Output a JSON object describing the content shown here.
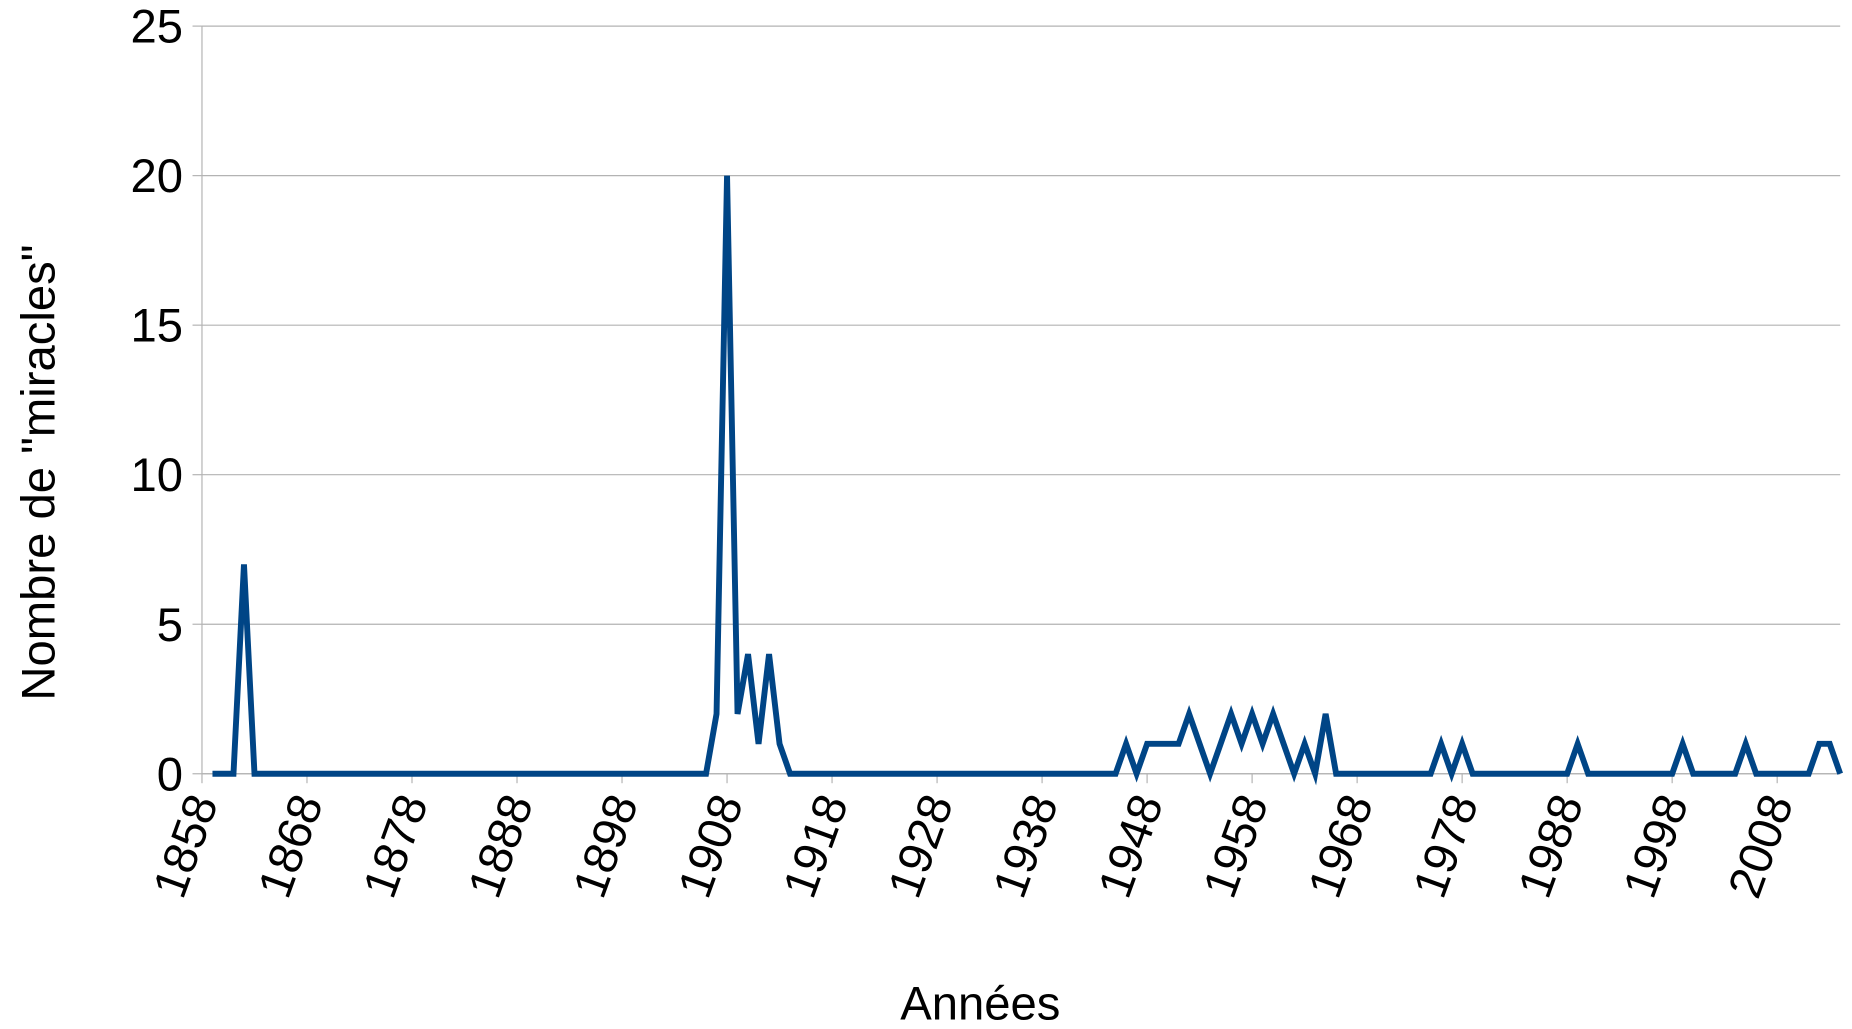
{
  "chart_data": {
    "type": "line",
    "xlabel": "Années",
    "ylabel": "Nombre de \"miracles\"",
    "color": "#004586",
    "grid": true,
    "xlim": [
      1858,
      2014
    ],
    "xticks": [
      1858,
      1868,
      1878,
      1888,
      1898,
      1908,
      1918,
      1928,
      1938,
      1948,
      1958,
      1968,
      1978,
      1988,
      1998,
      2008
    ],
    "ylim": [
      0,
      25
    ],
    "yticks": [
      0,
      5,
      10,
      15,
      20,
      25
    ],
    "x": [
      1859,
      1860,
      1861,
      1862,
      1863,
      1864,
      1865,
      1866,
      1867,
      1868,
      1869,
      1870,
      1871,
      1872,
      1873,
      1874,
      1875,
      1876,
      1877,
      1878,
      1879,
      1880,
      1881,
      1882,
      1883,
      1884,
      1885,
      1886,
      1887,
      1888,
      1889,
      1890,
      1891,
      1892,
      1893,
      1894,
      1895,
      1896,
      1897,
      1898,
      1899,
      1900,
      1901,
      1902,
      1903,
      1904,
      1905,
      1906,
      1907,
      1908,
      1909,
      1910,
      1911,
      1912,
      1913,
      1914,
      1915,
      1916,
      1917,
      1918,
      1919,
      1920,
      1921,
      1922,
      1923,
      1924,
      1925,
      1926,
      1927,
      1928,
      1929,
      1930,
      1931,
      1932,
      1933,
      1934,
      1935,
      1936,
      1937,
      1938,
      1939,
      1940,
      1941,
      1942,
      1943,
      1944,
      1945,
      1946,
      1947,
      1948,
      1949,
      1950,
      1951,
      1952,
      1953,
      1954,
      1955,
      1956,
      1957,
      1958,
      1959,
      1960,
      1961,
      1962,
      1963,
      1964,
      1965,
      1966,
      1967,
      1968,
      1969,
      1970,
      1971,
      1972,
      1973,
      1974,
      1975,
      1976,
      1977,
      1978,
      1979,
      1980,
      1981,
      1982,
      1983,
      1984,
      1985,
      1986,
      1987,
      1988,
      1989,
      1990,
      1991,
      1992,
      1993,
      1994,
      1995,
      1996,
      1997,
      1998,
      1999,
      2000,
      2001,
      2002,
      2003,
      2004,
      2005,
      2006,
      2007,
      2008,
      2009,
      2010,
      2011,
      2012,
      2013,
      2014
    ],
    "values": [
      0,
      0,
      0,
      7,
      0,
      0,
      0,
      0,
      0,
      0,
      0,
      0,
      0,
      0,
      0,
      0,
      0,
      0,
      0,
      0,
      0,
      0,
      0,
      0,
      0,
      0,
      0,
      0,
      0,
      0,
      0,
      0,
      0,
      0,
      0,
      0,
      0,
      0,
      0,
      0,
      0,
      0,
      0,
      0,
      0,
      0,
      0,
      0,
      2,
      20,
      2,
      4,
      1,
      4,
      1,
      0,
      0,
      0,
      0,
      0,
      0,
      0,
      0,
      0,
      0,
      0,
      0,
      0,
      0,
      0,
      0,
      0,
      0,
      0,
      0,
      0,
      0,
      0,
      0,
      0,
      0,
      0,
      0,
      0,
      0,
      0,
      0,
      1,
      0,
      1,
      1,
      1,
      1,
      2,
      1,
      0,
      1,
      2,
      1,
      2,
      1,
      2,
      1,
      0,
      1,
      0,
      2,
      0,
      0,
      0,
      0,
      0,
      0,
      0,
      0,
      0,
      0,
      1,
      0,
      1,
      0,
      0,
      0,
      0,
      0,
      0,
      0,
      0,
      0,
      0,
      1,
      0,
      0,
      0,
      0,
      0,
      0,
      0,
      0,
      0,
      1,
      0,
      0,
      0,
      0,
      0,
      1,
      0,
      0,
      0,
      0,
      0,
      0,
      1,
      1,
      0
    ]
  }
}
